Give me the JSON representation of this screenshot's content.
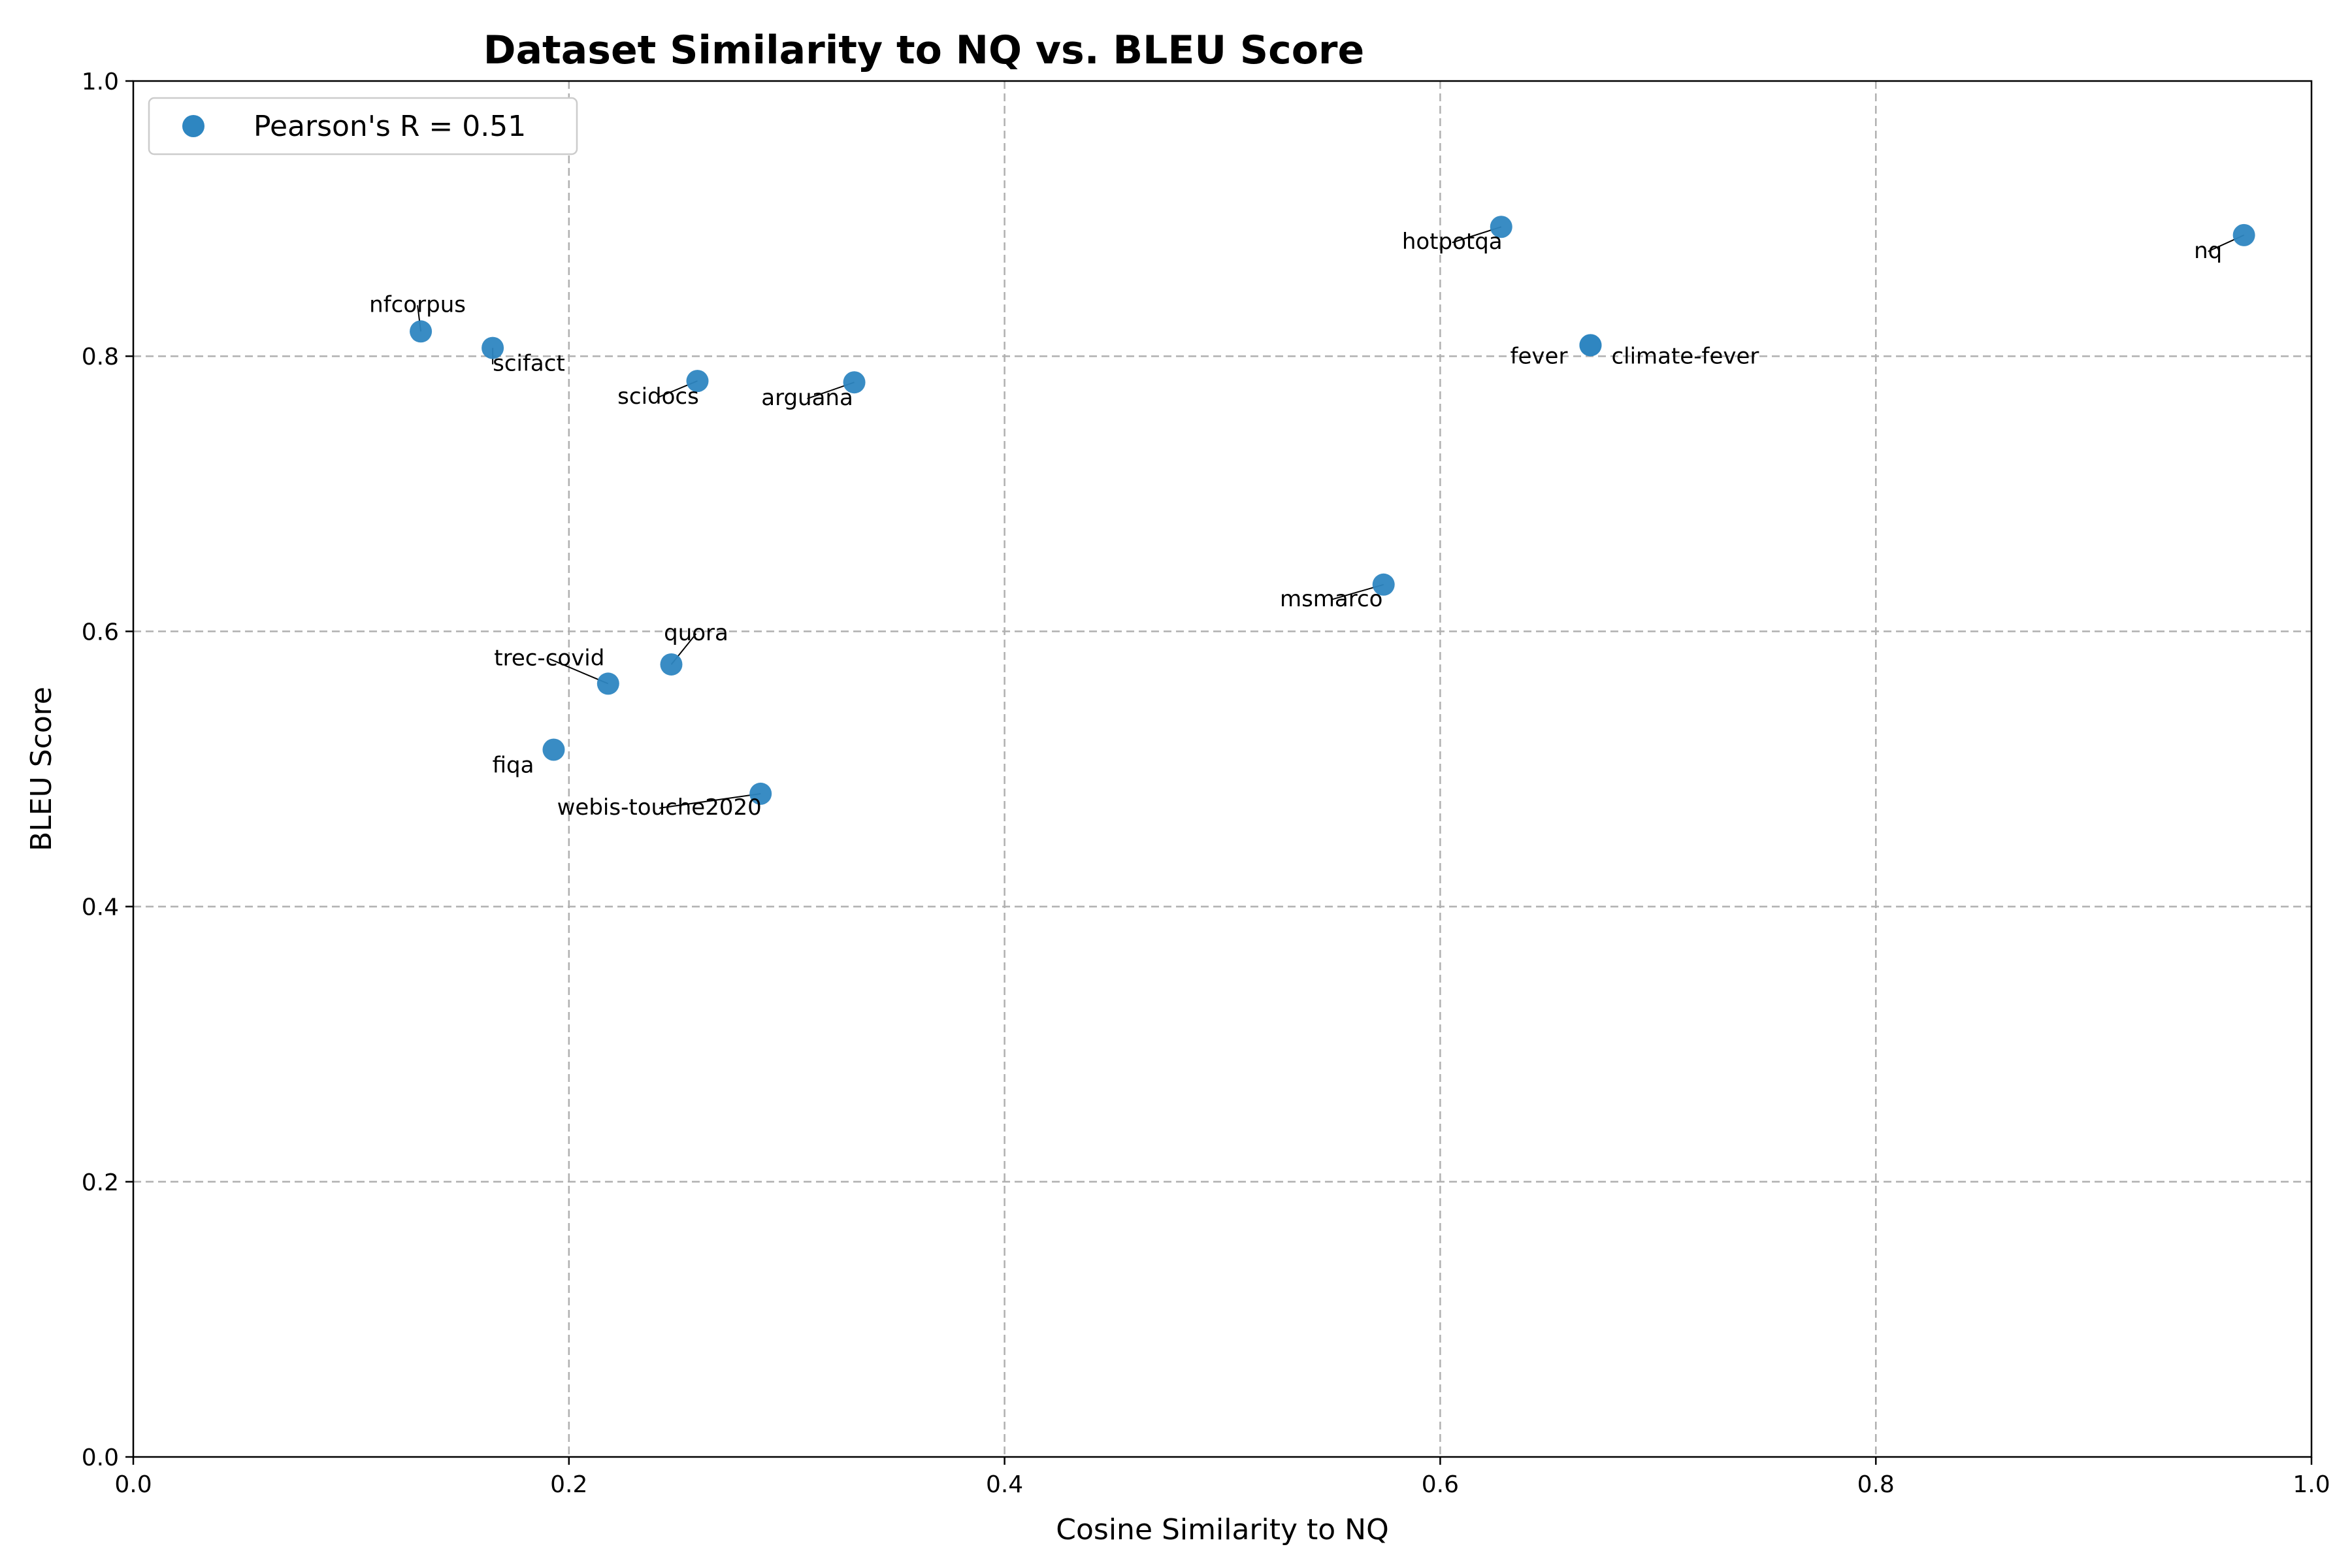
{
  "chart_data": {
    "type": "scatter",
    "title": "Dataset Similarity to NQ vs. BLEU Score",
    "xlabel": "Cosine Similarity to NQ",
    "ylabel": "BLEU Score",
    "xlim": [
      0.0,
      1.0
    ],
    "ylim": [
      0.0,
      1.0
    ],
    "xticks": [
      "0.0",
      "0.2",
      "0.4",
      "0.6",
      "0.8",
      "1.0"
    ],
    "yticks": [
      "0.0",
      "0.2",
      "0.4",
      "0.6",
      "0.8",
      "1.0"
    ],
    "grid": true,
    "legend": {
      "placement": "top-left",
      "entries": [
        "Pearson's R = 0.51"
      ]
    },
    "marker_color": "#2e86c1",
    "series": [
      {
        "name": "Pearson's R = 0.51",
        "points": [
          {
            "label": "nfcorpus",
            "x": 0.132,
            "y": 0.818
          },
          {
            "label": "scifact",
            "x": 0.165,
            "y": 0.806
          },
          {
            "label": "scidocs",
            "x": 0.259,
            "y": 0.782
          },
          {
            "label": "arguana",
            "x": 0.331,
            "y": 0.781
          },
          {
            "label": "hotpotqa",
            "x": 0.628,
            "y": 0.894
          },
          {
            "label": "nq",
            "x": 0.969,
            "y": 0.888
          },
          {
            "label": "fever",
            "x": 0.669,
            "y": 0.808
          },
          {
            "label": "climate-fever",
            "x": 0.669,
            "y": 0.808
          },
          {
            "label": "msmarco",
            "x": 0.574,
            "y": 0.634
          },
          {
            "label": "quora",
            "x": 0.247,
            "y": 0.576
          },
          {
            "label": "trec-covid",
            "x": 0.218,
            "y": 0.562
          },
          {
            "label": "fiqa",
            "x": 0.193,
            "y": 0.514
          },
          {
            "label": "webis-touche2020",
            "x": 0.288,
            "y": 0.482
          }
        ]
      }
    ]
  }
}
